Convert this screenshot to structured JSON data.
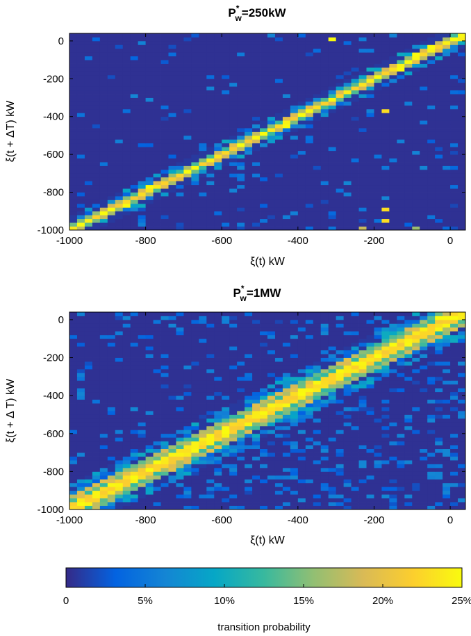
{
  "chart_data": [
    {
      "type": "heatmap",
      "title": "P*w=250kW",
      "title_parts": {
        "base": "P",
        "sup": "*",
        "sub": "w",
        "rest": "=250kW"
      },
      "xlabel": "ξ(t) kW",
      "ylabel": "ξ(t + ΔT) kW",
      "xlim": [
        -1000,
        40
      ],
      "ylim": [
        -1000,
        40
      ],
      "xticks": [
        -1000,
        -800,
        -600,
        -400,
        -200,
        0
      ],
      "xtick_labels": [
        "-1000",
        "-800",
        "-600",
        "-400",
        "-200",
        "0"
      ],
      "yticks": [
        -1000,
        -800,
        -600,
        -400,
        -200,
        0
      ],
      "ytick_labels": [
        "-1000",
        "-800",
        "-600",
        "-400",
        "-200",
        "0"
      ],
      "bin_width_kW": 20,
      "value_unit": "transition probability",
      "diagonal_peak": 0.25,
      "diagonal_band_width_kW": 20,
      "scatter_level": "sparse",
      "hot_cells": [
        {
          "x": -980,
          "y": -980,
          "v": 0.25
        },
        {
          "x": -900,
          "y": -900,
          "v": 0.25
        },
        {
          "x": -860,
          "y": -870,
          "v": 0.25
        },
        {
          "x": -800,
          "y": -780,
          "v": 0.25
        },
        {
          "x": -700,
          "y": -700,
          "v": 0.25
        },
        {
          "x": -640,
          "y": -640,
          "v": 0.24
        },
        {
          "x": -560,
          "y": -560,
          "v": 0.25
        },
        {
          "x": -500,
          "y": -500,
          "v": 0.25
        },
        {
          "x": -440,
          "y": -460,
          "v": 0.25
        },
        {
          "x": -400,
          "y": -400,
          "v": 0.25
        },
        {
          "x": -340,
          "y": -340,
          "v": 0.22
        },
        {
          "x": -280,
          "y": -280,
          "v": 0.24
        },
        {
          "x": -200,
          "y": -200,
          "v": 0.25
        },
        {
          "x": -180,
          "y": -370,
          "v": 0.23
        },
        {
          "x": -180,
          "y": -900,
          "v": 0.23
        },
        {
          "x": -180,
          "y": -950,
          "v": 0.23
        },
        {
          "x": -140,
          "y": -160,
          "v": 0.25
        },
        {
          "x": -120,
          "y": -120,
          "v": 0.25
        },
        {
          "x": -100,
          "y": -80,
          "v": 0.25
        },
        {
          "x": -60,
          "y": -40,
          "v": 0.25
        },
        {
          "x": -320,
          "y": 0,
          "v": 0.25
        },
        {
          "x": 0,
          "y": 0,
          "v": 0.25
        },
        {
          "x": 20,
          "y": 0,
          "v": 0.24
        },
        {
          "x": -240,
          "y": -990,
          "v": 0.18
        },
        {
          "x": -100,
          "y": -990,
          "v": 0.16
        }
      ]
    },
    {
      "type": "heatmap",
      "title": "P*w=1MW",
      "title_parts": {
        "base": "P",
        "sup": "*",
        "sub": "w",
        "rest": "=1MW"
      },
      "xlabel": "ξ(t) kW",
      "ylabel": "ξ(t + Δ T) kW",
      "xlim": [
        -1000,
        40
      ],
      "ylim": [
        -1000,
        40
      ],
      "xticks": [
        -1000,
        -800,
        -600,
        -400,
        -200,
        0
      ],
      "xtick_labels": [
        "-1000",
        "-800",
        "-600",
        "-400",
        "-200",
        "0"
      ],
      "yticks": [
        -1000,
        -800,
        -600,
        -400,
        -200,
        0
      ],
      "ytick_labels": [
        "-1000",
        "-800",
        "-600",
        "-400",
        "-200",
        "0"
      ],
      "bin_width_kW": 20,
      "value_unit": "transition probability",
      "diagonal_peak": 0.25,
      "diagonal_band_width_kW": 40,
      "scatter_level": "dense",
      "hot_cells": [
        {
          "x": -980,
          "y": -980,
          "v": 0.25
        },
        {
          "x": -960,
          "y": -960,
          "v": 0.22
        },
        {
          "x": -800,
          "y": -800,
          "v": 0.25
        },
        {
          "x": -600,
          "y": -600,
          "v": 0.25
        },
        {
          "x": -400,
          "y": -400,
          "v": 0.25
        },
        {
          "x": -200,
          "y": -200,
          "v": 0.25
        },
        {
          "x": -40,
          "y": 0,
          "v": 0.25
        },
        {
          "x": -20,
          "y": 0,
          "v": 0.25
        },
        {
          "x": 0,
          "y": 0,
          "v": 0.25
        },
        {
          "x": 20,
          "y": 0,
          "v": 0.24
        }
      ]
    }
  ],
  "colorbar": {
    "label": "transition probability",
    "min": 0,
    "max": 0.25,
    "ticks": [
      0,
      0.05,
      0.1,
      0.15,
      0.2,
      0.25
    ],
    "tick_labels": [
      "0",
      "5%",
      "10%",
      "15%",
      "20%",
      "25%"
    ],
    "colormap": "parula",
    "stops": [
      "#352a87",
      "#0363e1",
      "#1485d4",
      "#06a7c6",
      "#38b99e",
      "#92bf73",
      "#d9ba56",
      "#fcce2e",
      "#f9fb0e"
    ]
  }
}
